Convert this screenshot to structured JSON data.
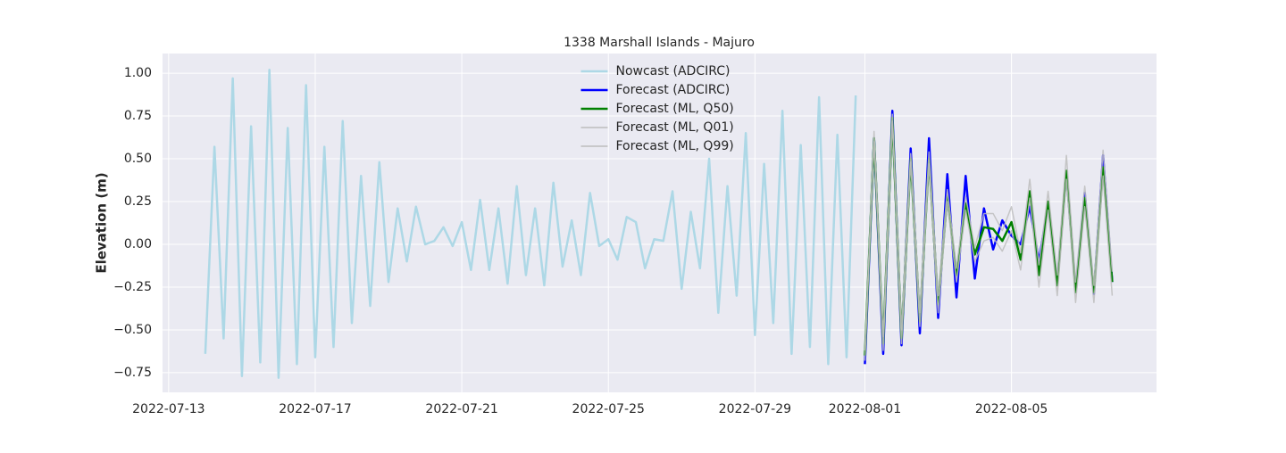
{
  "chart_data": {
    "type": "line",
    "title": "1338 Marshall Islands - Majuro",
    "y_label": "Elevation (m)",
    "xlim": [
      "2022-07-12T20:00",
      "2022-08-08T23:00"
    ],
    "xticks": [
      "2022-07-13",
      "2022-07-17",
      "2022-07-21",
      "2022-07-25",
      "2022-07-29",
      "2022-08-01",
      "2022-08-05"
    ],
    "ylim": [
      -0.865,
      1.115
    ],
    "yticks": [
      {
        "value": -0.75,
        "label": "−0.75"
      },
      {
        "value": -0.5,
        "label": "−0.50"
      },
      {
        "value": -0.25,
        "label": "−0.25"
      },
      {
        "value": 0,
        "label": "0.00"
      },
      {
        "value": 0.25,
        "label": "0.25"
      },
      {
        "value": 0.5,
        "label": "0.50"
      },
      {
        "value": 0.75,
        "label": "0.75"
      },
      {
        "value": 1,
        "label": "1.00"
      }
    ],
    "grid": true,
    "legend": "upper center",
    "series": [
      {
        "name": "Nowcast (ADCIRC)",
        "color": "#add8e6",
        "x": [
          "2022-07-14T00:00",
          "2022-07-14T06:00",
          "2022-07-14T12:00",
          "2022-07-14T18:00",
          "2022-07-15T00:00",
          "2022-07-15T06:00",
          "2022-07-15T12:00",
          "2022-07-15T18:00",
          "2022-07-16T00:00",
          "2022-07-16T06:00",
          "2022-07-16T12:00",
          "2022-07-16T18:00",
          "2022-07-17T00:00",
          "2022-07-17T06:00",
          "2022-07-17T12:00",
          "2022-07-17T18:00",
          "2022-07-18T00:00",
          "2022-07-18T06:00",
          "2022-07-18T12:00",
          "2022-07-18T18:00",
          "2022-07-19T00:00",
          "2022-07-19T06:00",
          "2022-07-19T12:00",
          "2022-07-19T18:00",
          "2022-07-20T00:00",
          "2022-07-20T06:00",
          "2022-07-20T12:00",
          "2022-07-20T18:00",
          "2022-07-21T00:00",
          "2022-07-21T06:00",
          "2022-07-21T12:00",
          "2022-07-21T18:00",
          "2022-07-22T00:00",
          "2022-07-22T06:00",
          "2022-07-22T12:00",
          "2022-07-22T18:00",
          "2022-07-23T00:00",
          "2022-07-23T06:00",
          "2022-07-23T12:00",
          "2022-07-23T18:00",
          "2022-07-24T00:00",
          "2022-07-24T06:00",
          "2022-07-24T12:00",
          "2022-07-24T18:00",
          "2022-07-25T00:00",
          "2022-07-25T06:00",
          "2022-07-25T12:00",
          "2022-07-25T18:00",
          "2022-07-26T00:00",
          "2022-07-26T06:00",
          "2022-07-26T12:00",
          "2022-07-26T18:00",
          "2022-07-27T00:00",
          "2022-07-27T06:00",
          "2022-07-27T12:00",
          "2022-07-27T18:00",
          "2022-07-28T00:00",
          "2022-07-28T06:00",
          "2022-07-28T12:00",
          "2022-07-28T18:00",
          "2022-07-29T00:00",
          "2022-07-29T06:00",
          "2022-07-29T12:00",
          "2022-07-29T18:00",
          "2022-07-30T00:00",
          "2022-07-30T06:00",
          "2022-07-30T12:00",
          "2022-07-30T18:00",
          "2022-07-31T00:00",
          "2022-07-31T06:00",
          "2022-07-31T12:00",
          "2022-07-31T18:00"
        ],
        "values": [
          -0.64,
          0.57,
          -0.55,
          0.97,
          -0.77,
          0.69,
          -0.69,
          1.02,
          -0.78,
          0.68,
          -0.7,
          0.93,
          -0.66,
          0.57,
          -0.6,
          0.72,
          -0.46,
          0.4,
          -0.36,
          0.48,
          -0.22,
          0.21,
          -0.1,
          0.22,
          0.0,
          0.02,
          0.1,
          -0.01,
          0.13,
          -0.15,
          0.26,
          -0.15,
          0.21,
          -0.23,
          0.34,
          -0.18,
          0.21,
          -0.24,
          0.36,
          -0.13,
          0.14,
          -0.18,
          0.3,
          -0.01,
          0.03,
          -0.09,
          0.16,
          0.13,
          -0.14,
          0.03,
          0.02,
          0.31,
          -0.26,
          0.19,
          -0.14,
          0.5,
          -0.4,
          0.34,
          -0.3,
          0.65,
          -0.53,
          0.47,
          -0.46,
          0.78,
          -0.64,
          0.58,
          -0.6,
          0.86,
          -0.7,
          0.64,
          -0.66,
          0.87
        ]
      },
      {
        "name": "Forecast (ADCIRC)",
        "color": "#0000ff",
        "x": [
          "2022-08-01T00:00",
          "2022-08-01T06:00",
          "2022-08-01T12:00",
          "2022-08-01T18:00",
          "2022-08-02T00:00",
          "2022-08-02T06:00",
          "2022-08-02T12:00",
          "2022-08-02T18:00",
          "2022-08-03T00:00",
          "2022-08-03T06:00",
          "2022-08-03T12:00",
          "2022-08-03T18:00",
          "2022-08-04T00:00",
          "2022-08-04T06:00",
          "2022-08-04T12:00",
          "2022-08-04T18:00",
          "2022-08-05T00:00",
          "2022-08-05T06:00",
          "2022-08-05T12:00",
          "2022-08-05T18:00",
          "2022-08-06T00:00",
          "2022-08-06T06:00",
          "2022-08-06T12:00",
          "2022-08-06T18:00",
          "2022-08-07T00:00",
          "2022-08-07T06:00",
          "2022-08-07T12:00",
          "2022-08-07T18:00"
        ],
        "values": [
          -0.7,
          0.62,
          -0.64,
          0.78,
          -0.59,
          0.56,
          -0.52,
          0.62,
          -0.43,
          0.41,
          -0.31,
          0.4,
          -0.2,
          0.21,
          -0.03,
          0.14,
          0.05,
          0.0,
          0.22,
          -0.1,
          0.23,
          -0.22,
          0.42,
          -0.27,
          0.3,
          -0.29,
          0.52,
          -0.22
        ]
      },
      {
        "name": "Forecast (ML, Q50)",
        "color": "#008000",
        "x": [
          "2022-08-01T00:00",
          "2022-08-01T06:00",
          "2022-08-01T12:00",
          "2022-08-01T18:00",
          "2022-08-02T00:00",
          "2022-08-02T06:00",
          "2022-08-02T12:00",
          "2022-08-02T18:00",
          "2022-08-03T00:00",
          "2022-08-03T06:00",
          "2022-08-03T12:00",
          "2022-08-03T18:00",
          "2022-08-04T00:00",
          "2022-08-04T06:00",
          "2022-08-04T12:00",
          "2022-08-04T18:00",
          "2022-08-05T00:00",
          "2022-08-05T06:00",
          "2022-08-05T12:00",
          "2022-08-05T18:00",
          "2022-08-06T00:00",
          "2022-08-06T06:00",
          "2022-08-06T12:00",
          "2022-08-06T18:00",
          "2022-08-07T00:00",
          "2022-08-07T06:00",
          "2022-08-07T12:00",
          "2022-08-07T18:00"
        ],
        "values": [
          -0.65,
          0.62,
          -0.58,
          0.74,
          -0.55,
          0.5,
          -0.45,
          0.5,
          -0.35,
          0.28,
          -0.18,
          0.24,
          -0.06,
          0.1,
          0.09,
          0.02,
          0.13,
          -0.09,
          0.31,
          -0.18,
          0.25,
          -0.24,
          0.43,
          -0.28,
          0.27,
          -0.28,
          0.45,
          -0.22
        ]
      },
      {
        "name": "Forecast (ML, Q01)",
        "color": "#bdbdbd",
        "x": [
          "2022-08-01T00:00",
          "2022-08-01T06:00",
          "2022-08-01T12:00",
          "2022-08-01T18:00",
          "2022-08-02T00:00",
          "2022-08-02T06:00",
          "2022-08-02T12:00",
          "2022-08-02T18:00",
          "2022-08-03T00:00",
          "2022-08-03T06:00",
          "2022-08-03T12:00",
          "2022-08-03T18:00",
          "2022-08-04T00:00",
          "2022-08-04T06:00",
          "2022-08-04T12:00",
          "2022-08-04T18:00",
          "2022-08-05T00:00",
          "2022-08-05T06:00",
          "2022-08-05T12:00",
          "2022-08-05T18:00",
          "2022-08-06T00:00",
          "2022-08-06T06:00",
          "2022-08-06T12:00",
          "2022-08-06T18:00",
          "2022-08-07T00:00",
          "2022-08-07T06:00",
          "2022-08-07T12:00",
          "2022-08-07T18:00"
        ],
        "values": [
          -0.68,
          0.6,
          -0.62,
          0.72,
          -0.58,
          0.48,
          -0.48,
          0.47,
          -0.4,
          0.25,
          -0.22,
          0.2,
          -0.1,
          0.02,
          0.04,
          -0.04,
          0.08,
          -0.15,
          0.27,
          -0.25,
          0.2,
          -0.3,
          0.38,
          -0.34,
          0.22,
          -0.34,
          0.4,
          -0.3
        ]
      },
      {
        "name": "Forecast (ML, Q99)",
        "color": "#bdbdbd",
        "x": [
          "2022-08-01T00:00",
          "2022-08-01T06:00",
          "2022-08-01T12:00",
          "2022-08-01T18:00",
          "2022-08-02T00:00",
          "2022-08-02T06:00",
          "2022-08-02T12:00",
          "2022-08-02T18:00",
          "2022-08-03T00:00",
          "2022-08-03T06:00",
          "2022-08-03T12:00",
          "2022-08-03T18:00",
          "2022-08-04T00:00",
          "2022-08-04T06:00",
          "2022-08-04T12:00",
          "2022-08-04T18:00",
          "2022-08-05T00:00",
          "2022-08-05T06:00",
          "2022-08-05T12:00",
          "2022-08-05T18:00",
          "2022-08-06T00:00",
          "2022-08-06T06:00",
          "2022-08-06T12:00",
          "2022-08-06T18:00",
          "2022-08-07T00:00",
          "2022-08-07T06:00",
          "2022-08-07T12:00",
          "2022-08-07T18:00"
        ],
        "values": [
          -0.62,
          0.66,
          -0.54,
          0.76,
          -0.5,
          0.53,
          -0.4,
          0.54,
          -0.3,
          0.32,
          -0.14,
          0.28,
          -0.02,
          0.18,
          0.18,
          0.08,
          0.22,
          -0.05,
          0.38,
          -0.12,
          0.31,
          -0.18,
          0.52,
          -0.22,
          0.34,
          -0.24,
          0.55,
          -0.16
        ]
      }
    ]
  }
}
